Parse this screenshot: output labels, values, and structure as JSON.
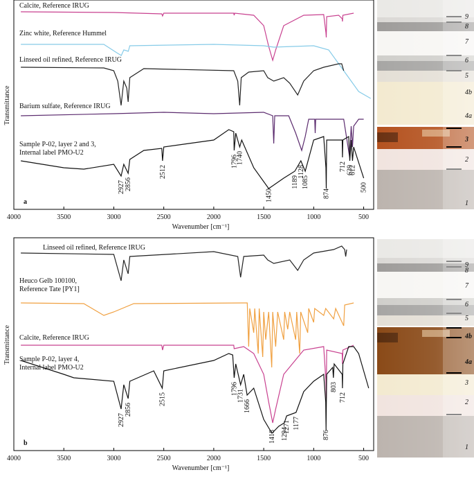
{
  "chart_data": [
    {
      "type": "line",
      "panel_label": "a",
      "ylabel": "Transmittance",
      "xlabel": "Wavenumber [cm⁻¹]",
      "xlim": [
        4000,
        400
      ],
      "xticks": [
        4000,
        3500,
        3000,
        2500,
        2000,
        1500,
        1000,
        500
      ],
      "ylim": [
        0,
        300
      ],
      "series": [
        {
          "name": "Calcite, Reference IRUG",
          "color": "#c8408f",
          "x": [
            3930,
            3000,
            2520,
            2512,
            2500,
            1800,
            1796,
            1790,
            1600,
            1500,
            1450,
            1410,
            1380,
            1300,
            1100,
            900,
            878,
            874,
            870,
            750,
            715,
            712,
            708,
            600
          ],
          "values": [
            285,
            284,
            282,
            279,
            283,
            283,
            280,
            283,
            280,
            265,
            235,
            215,
            230,
            265,
            280,
            281,
            255,
            248,
            278,
            280,
            275,
            271,
            280,
            283
          ]
        },
        {
          "name": "Zinc white, Reference Hummel",
          "color": "#86cbe8",
          "x": [
            3930,
            3100,
            2960,
            2925,
            2900,
            2855,
            2840,
            2000,
            1500,
            1400,
            1000,
            850,
            700,
            550,
            430
          ],
          "values": [
            238,
            238,
            225,
            222,
            230,
            228,
            236,
            238,
            236,
            234,
            236,
            230,
            200,
            170,
            160
          ]
        },
        {
          "name": "Linseed oil refined, Reference IRUG",
          "color": "#222222",
          "x": [
            3930,
            3100,
            3000,
            2960,
            2927,
            2900,
            2870,
            2856,
            2840,
            2700,
            1800,
            1760,
            1740,
            1725,
            1650,
            1500,
            1460,
            1400,
            1300,
            1240,
            1160,
            1100,
            1000,
            900,
            750,
            720,
            700
          ],
          "values": [
            205,
            204,
            200,
            185,
            150,
            185,
            175,
            155,
            190,
            203,
            200,
            185,
            150,
            190,
            198,
            200,
            190,
            185,
            190,
            182,
            165,
            185,
            200,
            205,
            210,
            210,
            200
          ]
        },
        {
          "name": "Barium sulfate, Reference IRUG",
          "color": "#5b2b6e",
          "x": [
            3930,
            3000,
            2500,
            2000,
            1500,
            1410,
            1400,
            1390,
            1250,
            1180,
            1120,
            1085,
            1050,
            990,
            985,
            980,
            700,
            640,
            625,
            612,
            600,
            550,
            500
          ],
          "values": [
            135,
            138,
            140,
            138,
            140,
            135,
            95,
            135,
            135,
            110,
            85,
            105,
            130,
            130,
            110,
            130,
            130,
            75,
            120,
            90,
            120,
            130,
            130
          ]
        },
        {
          "name": "Sample P-02, layer 2 and 3,\nInternal label PMO-U2",
          "color": "#111111",
          "x": [
            3930,
            3500,
            3300,
            3000,
            2927,
            2900,
            2856,
            2840,
            2700,
            2520,
            2512,
            2500,
            2000,
            1850,
            1800,
            1796,
            1780,
            1740,
            1720,
            1600,
            1500,
            1450,
            1400,
            1300,
            1189,
            1128,
            1085,
            1000,
            900,
            878,
            874,
            870,
            800,
            715,
            712,
            708,
            650,
            639,
            625,
            612,
            600,
            500
          ],
          "values": [
            70,
            60,
            58,
            65,
            48,
            65,
            52,
            72,
            85,
            88,
            70,
            90,
            100,
            115,
            112,
            85,
            110,
            90,
            100,
            60,
            40,
            30,
            35,
            45,
            55,
            70,
            55,
            100,
            105,
            60,
            30,
            100,
            100,
            100,
            75,
            100,
            105,
            70,
            100,
            70,
            90,
            45
          ]
        }
      ],
      "peak_labels": [
        2927,
        2856,
        2512,
        1796,
        1740,
        1450,
        1189,
        1128,
        1085,
        874,
        712,
        639,
        612,
        500
      ],
      "layer_labels": [
        "9",
        "8",
        "7",
        "6",
        "5",
        "4b",
        "4a",
        "3",
        "2",
        "1"
      ]
    },
    {
      "type": "line",
      "panel_label": "b",
      "ylabel": "Transmittance",
      "xlabel": "Wavenumber [cm⁻¹]",
      "xlim": [
        4000,
        400
      ],
      "xticks": [
        4000,
        3500,
        3000,
        2500,
        2000,
        1500,
        1000,
        500
      ],
      "ylim": [
        0,
        305
      ],
      "series": [
        {
          "name": "Linseed oil refined, Reference IRUG",
          "color": "#222222",
          "x": [
            3930,
            3000,
            2927,
            2900,
            2856,
            2840,
            2000,
            1760,
            1731,
            1700,
            1500,
            1460,
            1400,
            1240,
            1160,
            1100,
            1000,
            800,
            720,
            690,
            680,
            670
          ],
          "values": [
            285,
            283,
            245,
            275,
            255,
            280,
            287,
            280,
            250,
            280,
            282,
            275,
            270,
            275,
            260,
            275,
            285,
            290,
            295,
            290,
            280,
            290
          ]
        },
        {
          "name": "Heuco Gelb 100100,\nReference Tate [PY1]",
          "color": "#f0a040",
          "x": [
            3930,
            3300,
            3100,
            3000,
            2800,
            1700,
            1665,
            1650,
            1640,
            1600,
            1590,
            1555,
            1545,
            1510,
            1500,
            1480,
            1450,
            1420,
            1410,
            1380,
            1360,
            1300,
            1290,
            1260,
            1240,
            1180,
            1170,
            1140,
            1130,
            1060,
            1050,
            1000,
            990,
            900,
            880,
            800,
            780,
            700,
            690,
            600
          ],
          "values": [
            213,
            212,
            195,
            200,
            212,
            213,
            213,
            150,
            205,
            170,
            205,
            140,
            205,
            135,
            200,
            160,
            200,
            120,
            200,
            150,
            200,
            160,
            200,
            175,
            200,
            160,
            200,
            140,
            200,
            170,
            205,
            185,
            205,
            195,
            205,
            190,
            205,
            180,
            210,
            213
          ]
        },
        {
          "name": "Calcite, Reference IRUG",
          "color": "#c8408f",
          "x": [
            3930,
            2520,
            2512,
            2500,
            1800,
            1796,
            1700,
            1600,
            1500,
            1450,
            1410,
            1380,
            1300,
            1100,
            900,
            878,
            874,
            870,
            715,
            712,
            708,
            600
          ],
          "values": [
            152,
            152,
            145,
            152,
            152,
            147,
            150,
            140,
            110,
            70,
            40,
            60,
            110,
            145,
            150,
            100,
            75,
            145,
            140,
            125,
            145,
            152
          ]
        },
        {
          "name": "Sample P-02, layer 4,\nInternal label PMO-U2",
          "color": "#111111",
          "x": [
            3930,
            3500,
            3400,
            3000,
            2927,
            2900,
            2856,
            2840,
            2600,
            2515,
            2500,
            2000,
            1850,
            1810,
            1796,
            1780,
            1731,
            1700,
            1666,
            1600,
            1500,
            1418,
            1350,
            1294,
            1271,
            1177,
            1100,
            1000,
            900,
            880,
            876,
            870,
            810,
            803,
            795,
            715,
            712,
            708,
            650,
            600,
            550,
            450
          ],
          "values": [
            130,
            110,
            105,
            100,
            60,
            95,
            75,
            100,
            115,
            90,
            115,
            130,
            140,
            138,
            105,
            125,
            95,
            110,
            80,
            90,
            45,
            25,
            35,
            40,
            50,
            55,
            85,
            100,
            110,
            70,
            30,
            110,
            120,
            105,
            125,
            110,
            90,
            125,
            150,
            150,
            140,
            90
          ]
        }
      ],
      "peak_labels": [
        2927,
        2856,
        2515,
        1796,
        1731,
        1666,
        1418,
        1294,
        1271,
        1177,
        876,
        803,
        712
      ],
      "layer_labels": [
        "9",
        "8",
        "7",
        "6",
        "5",
        "4b",
        "4a",
        "3",
        "2",
        "1"
      ]
    }
  ]
}
